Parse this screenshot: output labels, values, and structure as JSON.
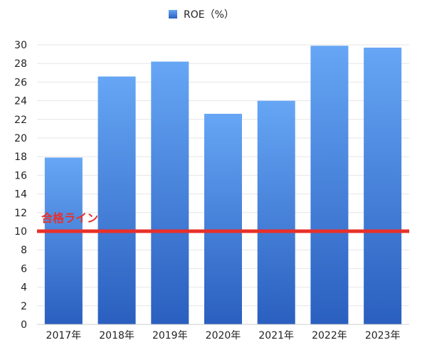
{
  "chart_data": {
    "type": "bar",
    "categories": [
      "2017年",
      "2018年",
      "2019年",
      "2020年",
      "2021年",
      "2022年",
      "2023年"
    ],
    "series": [
      {
        "name": "ROE（%）",
        "values": [
          17.9,
          26.6,
          28.2,
          22.6,
          24.0,
          29.9,
          29.7
        ],
        "color": "#4a86e0"
      }
    ],
    "yticks": [
      "0",
      "2",
      "4",
      "6",
      "8",
      "10",
      "12",
      "14",
      "16",
      "18",
      "20",
      "22",
      "24",
      "26",
      "28",
      "30"
    ],
    "ylim": [
      0,
      30
    ],
    "grid": true,
    "legend": {
      "position": "top-center"
    },
    "threshold": {
      "label": "合格ライン",
      "value": 10,
      "color": "#e8302a"
    }
  }
}
